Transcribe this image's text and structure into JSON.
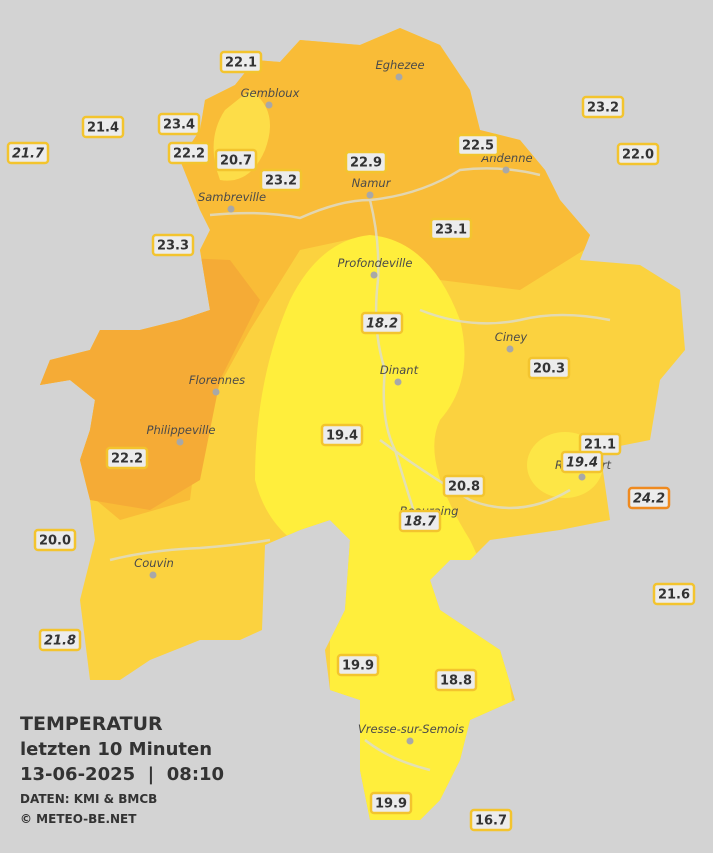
{
  "legend": {
    "title": "TEMPERATUR",
    "period": "letzten 10 Minuten",
    "datetime": "13-06-2025  |  08:10",
    "source": "DATEN: KMI & BMCB",
    "copyright": "© METEO-BE.NET"
  },
  "cities": [
    "Eghezee",
    "Gembloux",
    "Andenne",
    "Namur",
    "Sambreville",
    "Profondeville",
    "Ciney",
    "Dinant",
    "Florennes",
    "Philippeville",
    "Rochefort",
    "Beauraing",
    "Couvin",
    "Vresse-sur-Semois"
  ],
  "stations": [
    {
      "label": "22.1",
      "italic": false,
      "border": "#f3c42e"
    },
    {
      "label": "23.4",
      "italic": false,
      "border": "#f3c42e"
    },
    {
      "label": "21.4",
      "italic": false,
      "border": "#f3c42e"
    },
    {
      "label": "21.7",
      "italic": true,
      "border": "#f3c42e"
    },
    {
      "label": "22.2",
      "italic": false,
      "border": "#f3c42e"
    },
    {
      "label": "20.7",
      "italic": false,
      "border": "#f3c42e"
    },
    {
      "label": "23.2",
      "italic": false,
      "border": "#f3c42e"
    },
    {
      "label": "22.9",
      "italic": false,
      "border": "#f3c42e"
    },
    {
      "label": "22.5",
      "italic": false,
      "border": "#f3c42e"
    },
    {
      "label": "23.2",
      "italic": false,
      "border": "#f3c42e"
    },
    {
      "label": "22.0",
      "italic": false,
      "border": "#f3c42e"
    },
    {
      "label": "23.3",
      "italic": false,
      "border": "#f3c42e"
    },
    {
      "label": "23.1",
      "italic": false,
      "border": "#f3c42e"
    },
    {
      "label": "18.2",
      "italic": true,
      "border": "#f3c42e"
    },
    {
      "label": "20.3",
      "italic": false,
      "border": "#f3c42e"
    },
    {
      "label": "19.4",
      "italic": false,
      "border": "#f3c42e"
    },
    {
      "label": "22.2",
      "italic": false,
      "border": "#f3c42e"
    },
    {
      "label": "21.1",
      "italic": false,
      "border": "#f3c42e"
    },
    {
      "label": "19.4",
      "italic": true,
      "border": "#f3c42e"
    },
    {
      "label": "20.8",
      "italic": false,
      "border": "#f3c42e"
    },
    {
      "label": "24.2",
      "italic": true,
      "border": "#ef8a1f"
    },
    {
      "label": "18.7",
      "italic": true,
      "border": "#f3c42e"
    },
    {
      "label": "20.0",
      "italic": false,
      "border": "#f3c42e"
    },
    {
      "label": "21.6",
      "italic": false,
      "border": "#f3c42e"
    },
    {
      "label": "21.8",
      "italic": true,
      "border": "#f3c42e"
    },
    {
      "label": "19.9",
      "italic": false,
      "border": "#f3c42e"
    },
    {
      "label": "18.8",
      "italic": false,
      "border": "#f3c42e"
    },
    {
      "label": "19.9",
      "italic": false,
      "border": "#f3c42e"
    },
    {
      "label": "16.7",
      "italic": false,
      "border": "#f3c42e"
    }
  ]
}
